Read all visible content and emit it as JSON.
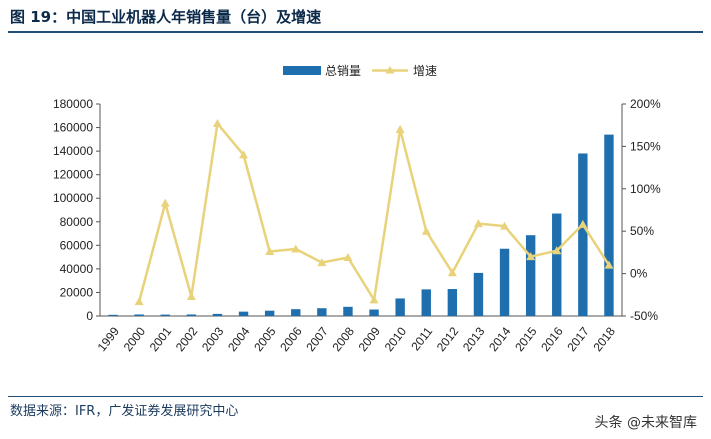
{
  "figure": {
    "title": "图 19：中国工业机器人年销售量（台）及增速",
    "source": "数据来源：IFR，广发证券发展研究中心",
    "watermark": "头条 @未来智库"
  },
  "chart_data": {
    "type": "bar",
    "title": "",
    "xlabel": "",
    "ylabel": "",
    "categories": [
      "1999",
      "2000",
      "2001",
      "2002",
      "2003",
      "2004",
      "2005",
      "2006",
      "2007",
      "2008",
      "2009",
      "2010",
      "2011",
      "2012",
      "2013",
      "2014",
      "2015",
      "2016",
      "2017",
      "2018"
    ],
    "series": [
      {
        "name": "总销量",
        "type": "bar",
        "axis": "left",
        "color": "#1f6fae",
        "values": [
          1000,
          1300,
          1200,
          1300,
          1800,
          3700,
          4500,
          5800,
          6600,
          7800,
          5500,
          14900,
          22600,
          22900,
          36600,
          57100,
          68600,
          87000,
          138000,
          154000
        ]
      },
      {
        "name": "增速",
        "type": "line",
        "axis": "right",
        "unit": "%",
        "color": "#e8d27a",
        "values": [
          null,
          -33,
          83,
          -27,
          177,
          140,
          26,
          29,
          13,
          19,
          -31,
          170,
          50,
          1,
          59,
          56,
          20,
          27,
          58,
          10
        ]
      }
    ],
    "ylim": [
      0,
      180000
    ],
    "yticks": [
      0,
      20000,
      40000,
      60000,
      80000,
      100000,
      120000,
      140000,
      160000,
      180000
    ],
    "y2lim": [
      -50,
      200
    ],
    "y2ticks": [
      "-50%",
      "0%",
      "50%",
      "100%",
      "150%",
      "200%"
    ],
    "legend_position": "top-center",
    "grid": false
  }
}
